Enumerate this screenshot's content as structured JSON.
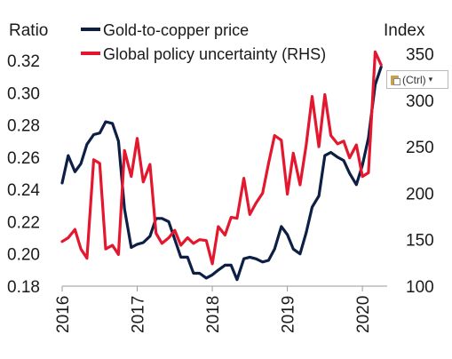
{
  "chart_data": {
    "type": "line",
    "left_axis_title": "Ratio",
    "right_axis_title": "Index",
    "left_ylim": [
      0.18,
      0.33
    ],
    "right_ylim": [
      100,
      360
    ],
    "left_ticks": [
      "0.32",
      "0.30",
      "0.28",
      "0.26",
      "0.24",
      "0.22",
      "0.20",
      "0.18"
    ],
    "left_tick_values": [
      0.32,
      0.3,
      0.28,
      0.26,
      0.24,
      0.22,
      0.2,
      0.18
    ],
    "right_ticks": [
      "350",
      "300",
      "250",
      "200",
      "150",
      "100"
    ],
    "right_tick_values": [
      350,
      300,
      250,
      200,
      150,
      100
    ],
    "xlim": [
      2016.0,
      2020.33
    ],
    "x_ticks": [
      "2016",
      "2017",
      "2018",
      "2019",
      "2020"
    ],
    "x_tick_values": [
      2016,
      2017,
      2018,
      2019,
      2020
    ],
    "legend_position": "top",
    "series": [
      {
        "name": "Gold-to-copper price",
        "axis": "left",
        "color": "#0d1f45",
        "x": [
          2016.0,
          2016.08,
          2016.17,
          2016.25,
          2016.33,
          2016.42,
          2016.5,
          2016.58,
          2016.67,
          2016.75,
          2016.83,
          2016.92,
          2017.0,
          2017.08,
          2017.17,
          2017.25,
          2017.33,
          2017.42,
          2017.5,
          2017.58,
          2017.67,
          2017.75,
          2017.83,
          2017.92,
          2018.0,
          2018.08,
          2018.17,
          2018.25,
          2018.33,
          2018.42,
          2018.5,
          2018.58,
          2018.67,
          2018.75,
          2018.83,
          2018.92,
          2019.0,
          2019.08,
          2019.17,
          2019.25,
          2019.33,
          2019.42,
          2019.5,
          2019.58,
          2019.67,
          2019.75,
          2019.83,
          2019.92,
          2020.0,
          2020.08,
          2020.17,
          2020.25
        ],
        "y": [
          0.244,
          0.261,
          0.251,
          0.256,
          0.268,
          0.274,
          0.275,
          0.282,
          0.281,
          0.27,
          0.228,
          0.204,
          0.206,
          0.207,
          0.211,
          0.222,
          0.222,
          0.22,
          0.209,
          0.198,
          0.198,
          0.188,
          0.188,
          0.185,
          0.187,
          0.19,
          0.193,
          0.193,
          0.184,
          0.197,
          0.198,
          0.197,
          0.195,
          0.196,
          0.203,
          0.217,
          0.212,
          0.203,
          0.2,
          0.213,
          0.229,
          0.236,
          0.261,
          0.263,
          0.26,
          0.258,
          0.25,
          0.243,
          0.255,
          0.272,
          0.305,
          0.316
        ]
      },
      {
        "name": "Global policy uncertainty (RHS)",
        "axis": "right",
        "color": "#e3172e",
        "x": [
          2016.0,
          2016.08,
          2016.17,
          2016.25,
          2016.33,
          2016.42,
          2016.5,
          2016.58,
          2016.67,
          2016.75,
          2016.83,
          2016.92,
          2017.0,
          2017.08,
          2017.17,
          2017.25,
          2017.33,
          2017.42,
          2017.5,
          2017.58,
          2017.67,
          2017.75,
          2017.83,
          2017.92,
          2018.0,
          2018.08,
          2018.17,
          2018.25,
          2018.33,
          2018.42,
          2018.5,
          2018.58,
          2018.67,
          2018.75,
          2018.83,
          2018.92,
          2019.0,
          2019.08,
          2019.17,
          2019.25,
          2019.33,
          2019.42,
          2019.5,
          2019.58,
          2019.67,
          2019.75,
          2019.83,
          2019.92,
          2020.0,
          2020.08,
          2020.17,
          2020.25
        ],
        "y": [
          148,
          152,
          161,
          140,
          130,
          236,
          232,
          140,
          144,
          134,
          246,
          218,
          259,
          212,
          231,
          157,
          146,
          152,
          160,
          144,
          152,
          146,
          150,
          149,
          124,
          164,
          155,
          174,
          173,
          216,
          177,
          189,
          200,
          232,
          262,
          257,
          199,
          243,
          209,
          251,
          304,
          250,
          306,
          262,
          253,
          256,
          238,
          252,
          218,
          222,
          352,
          338
        ]
      }
    ]
  },
  "overlay": {
    "paste_label": "(Ctrl)",
    "paste_arrow": "▾"
  }
}
